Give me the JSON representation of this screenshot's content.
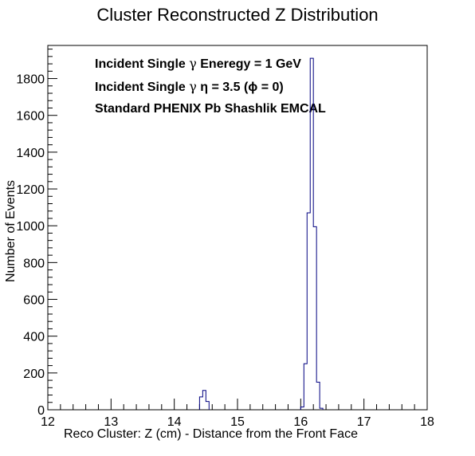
{
  "chart_data": {
    "type": "histogram",
    "title": "Cluster Reconstructed Z Distribution",
    "xlabel": "Reco Cluster: Z (cm) - Distance from the Front Face",
    "ylabel": "Number of Events",
    "xlim": [
      12,
      18
    ],
    "ylim": [
      0,
      1980
    ],
    "x_ticks": [
      12,
      13,
      14,
      15,
      16,
      17,
      18
    ],
    "x_tick_labels": [
      "12",
      "13",
      "14",
      "15",
      "16",
      "17",
      "18"
    ],
    "y_ticks": [
      0,
      200,
      400,
      600,
      800,
      1000,
      1200,
      1400,
      1600,
      1800
    ],
    "y_tick_labels": [
      "0",
      "200",
      "400",
      "600",
      "800",
      "1000",
      "1200",
      "1400",
      "1600",
      "1800"
    ],
    "line_color": "#000080",
    "grid": false,
    "annotations": [
      {
        "prefix": "Incident Single   ",
        "symbol": "γ",
        "suffix": " Eneregy = 1 GeV"
      },
      {
        "prefix": "Incident Single   ",
        "symbol": "γ",
        "suffix": "  η = 3.5 (ϕ = 0)"
      },
      {
        "prefix": "Standard PHENIX Pb Shashlik EMCAL",
        "symbol": "",
        "suffix": ""
      }
    ],
    "bins": [
      {
        "x_low": 14.4,
        "x_high": 14.45,
        "count": 70
      },
      {
        "x_low": 14.45,
        "x_high": 14.5,
        "count": 105
      },
      {
        "x_low": 14.5,
        "x_high": 14.55,
        "count": 45
      },
      {
        "x_low": 16.0,
        "x_high": 16.05,
        "count": 15
      },
      {
        "x_low": 16.05,
        "x_high": 16.1,
        "count": 250
      },
      {
        "x_low": 16.1,
        "x_high": 16.15,
        "count": 1070
      },
      {
        "x_low": 16.15,
        "x_high": 16.2,
        "count": 1910
      },
      {
        "x_low": 16.2,
        "x_high": 16.25,
        "count": 995
      },
      {
        "x_low": 16.25,
        "x_high": 16.3,
        "count": 150
      },
      {
        "x_low": 16.3,
        "x_high": 16.35,
        "count": 8
      }
    ]
  }
}
